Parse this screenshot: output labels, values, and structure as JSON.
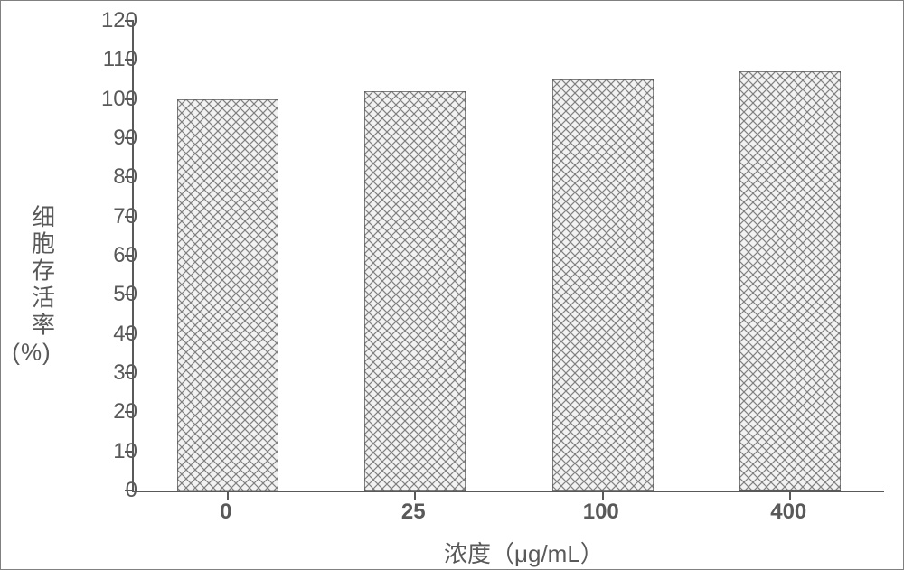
{
  "chart": {
    "type": "bar",
    "background_color": "#ffffff",
    "axis_color": "#595959",
    "text_color": "#595959",
    "y_axis": {
      "label": "细胞存活率",
      "label_suffix": "(%)",
      "min": 0,
      "max": 120,
      "tick_step": 10,
      "ticks": [
        0,
        10,
        20,
        30,
        40,
        50,
        60,
        70,
        80,
        90,
        100,
        110,
        120
      ],
      "label_fontsize": 26,
      "tick_fontsize": 24
    },
    "x_axis": {
      "label": "浓度（μg/mL）",
      "label_fontsize": 26,
      "tick_fontsize": 24,
      "categories": [
        "0",
        "25",
        "100",
        "400"
      ]
    },
    "bars": {
      "values": [
        100,
        102,
        105,
        107
      ],
      "fill_color": "#f2f2f2",
      "hatch_stroke_color": "#808080",
      "hatch_pattern": "crosshatch-diagonal",
      "hatch_spacing": 10,
      "hatch_stroke_width": 1.2,
      "border_color": "#595959",
      "border_width": 1.5,
      "bar_width_ratio": 0.54
    }
  }
}
